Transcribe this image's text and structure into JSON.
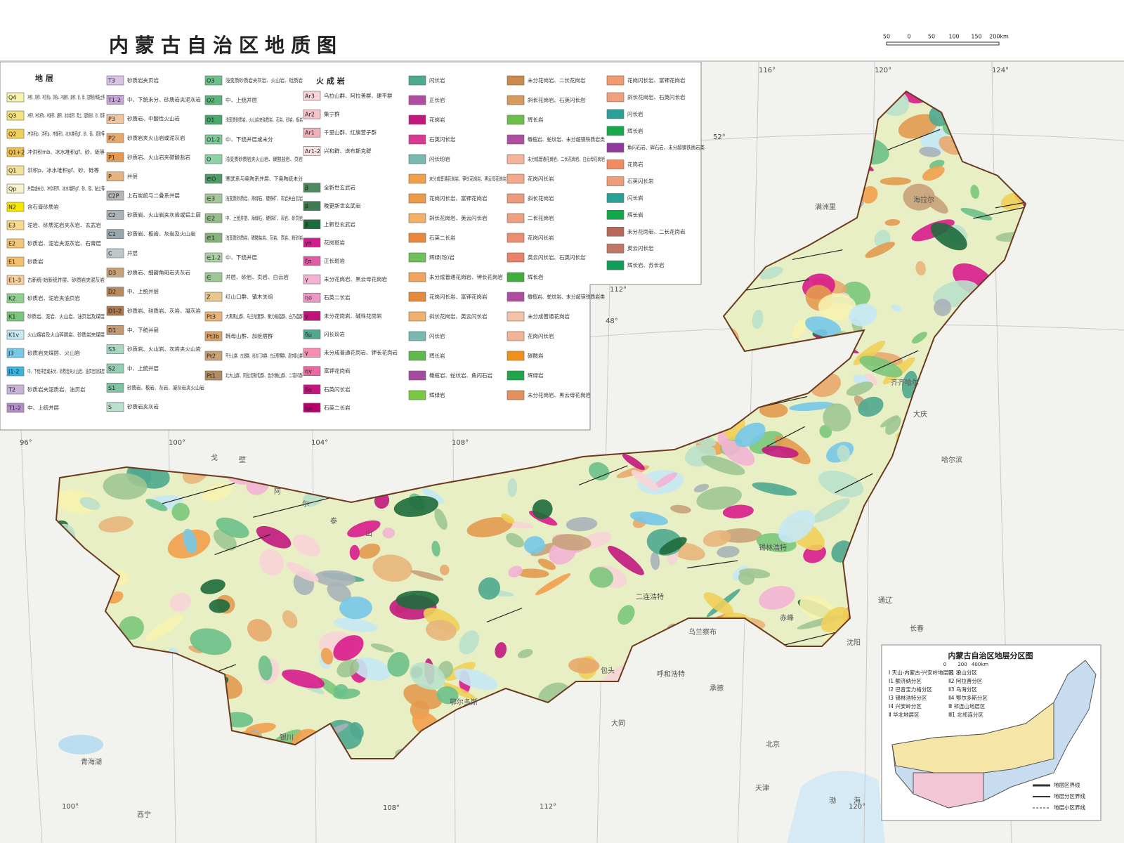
{
  "title": "内蒙古自治区地质图",
  "scale": [
    "50",
    "0",
    "50",
    "100",
    "150",
    "200km"
  ],
  "legend": {
    "strata_heading": "地 层",
    "igneous_heading": "火 成 岩",
    "columns": [
      [
        {
          "code": "Q4",
          "text": "冲积l、风积l、冲洪积p、洪积p、冲湖积l、湖积l、砂、砾、泥质粉砂和黏土等",
          "color": "#f6f2b0"
        },
        {
          "code": "Q3",
          "text": "冲积f、冲洪积fp、冲湖积l、湖积l、冰水堆积f、黄土、泥质粉砂、砂、砾等",
          "color": "#f5e27a"
        },
        {
          "code": "Q2",
          "text": "冲洪积p、洪积p、冲湖积l、冰水堆积gf、砂、砾、泥砂等",
          "color": "#f0cf59"
        },
        {
          "code": "Q1+2",
          "text": "冲洪积mb、冰水堆积gf、砂、砾等",
          "color": "#eec050"
        },
        {
          "code": "Q1",
          "text": "洪积p、冰水堆积gf、砂、砾等",
          "color": "#f3e09a"
        },
        {
          "code": "Qp",
          "text": "并层或未分、冲洪积fl、冰水堆积gf、砂、砾、黏土等",
          "color": "#f8f3cc"
        },
        {
          "code": "N2",
          "text": "含石膏砂质岩",
          "color": "#f7e600"
        },
        {
          "code": "E3",
          "text": "泥岩、砂质泥岩夹灰岩、玄武岩",
          "color": "#f9d98c"
        },
        {
          "code": "E2",
          "text": "砂质岩、泥岩夹泥灰岩、石膏层",
          "color": "#f5c878"
        },
        {
          "code": "E1",
          "text": "砂质岩",
          "color": "#f5c06b"
        },
        {
          "code": "E1-3",
          "text": "古新统-始新统并层、砂质岩夹泥灰岩",
          "color": "#f7d09c"
        },
        {
          "code": "K2",
          "text": "砂质岩、泥岩夹油页岩",
          "color": "#8fd18f"
        },
        {
          "code": "K1",
          "text": "砂质岩、泥岩、火山岩、油页岩及煤层",
          "color": "#7bc67b"
        },
        {
          "code": "K1v",
          "text": "火山熔岩及火山碎屑岩、砂质岩夹煤层",
          "color": "#c5e8f5"
        },
        {
          "code": "J3",
          "text": "砂质岩夹煤层、火山岩",
          "color": "#76c8e8"
        },
        {
          "code": "J1-2",
          "text": "中、下统并层或未分、砂质岩夹火山岩、油页岩及煤层",
          "color": "#3db3e0"
        },
        {
          "code": "T2",
          "text": "砂质岩夹泥质岩、油页岩",
          "color": "#c9b3d9"
        },
        {
          "code": "T1-2",
          "text": "中、上统并层",
          "color": "#b48fc7"
        }
      ],
      [
        {
          "code": "T3",
          "text": "砂质岩夹页岩",
          "color": "#d9c3e6"
        },
        {
          "code": "T1-2",
          "text": "中、下统未分、砂质岩夹泥灰岩",
          "color": "#c6a6d8"
        },
        {
          "code": "P3",
          "text": "砂质岩、中酸性火山岩",
          "color": "#f0c6a0"
        },
        {
          "code": "P2",
          "text": "砂质岩夹火山岩或泥灰岩",
          "color": "#e8a86c"
        },
        {
          "code": "P1",
          "text": "砂质岩、火山岩夹碳酸盐岩",
          "color": "#e39a50"
        },
        {
          "code": "P",
          "text": "并层",
          "color": "#e7b27e"
        },
        {
          "code": "C2P",
          "text": "上石炭统与二叠系并层",
          "color": "#b6b6b6"
        },
        {
          "code": "C2",
          "text": "砂质岩、火山岩夹灰岩或铝土层",
          "color": "#a9b3b9"
        },
        {
          "code": "C1",
          "text": "砂质岩、板岩、灰岩及火山岩",
          "color": "#9aa6ad"
        },
        {
          "code": "C",
          "text": "并层",
          "color": "#bfc6ca"
        },
        {
          "code": "D3",
          "text": "砂质岩、细碧角斑岩夹灰岩",
          "color": "#c9a27a"
        },
        {
          "code": "D2",
          "text": "中、上统并层",
          "color": "#b98a5f"
        },
        {
          "code": "D1-2",
          "text": "砂质岩、硅质岩、灰岩、凝灰岩",
          "color": "#a87950"
        },
        {
          "code": "D1",
          "text": "中、下统并层",
          "color": "#c19a74"
        },
        {
          "code": "S3",
          "text": "砂质岩、火山岩、灰岩夹火山岩",
          "color": "#a8d8c0"
        },
        {
          "code": "S2",
          "text": "中、上统并层",
          "color": "#94cfb1"
        },
        {
          "code": "S1",
          "text": "砂质岩、板岩、灰岩、凝灰岩夹火山岩",
          "color": "#7fc3a0"
        },
        {
          "code": "S",
          "text": "砂质岩夹灰岩",
          "color": "#b9e0cb"
        }
      ],
      [
        {
          "code": "O3",
          "text": "浅变质砂质岩夹灰岩、火山岩、硅质岩",
          "color": "#6cc08a"
        },
        {
          "code": "O2",
          "text": "中、上统并层",
          "color": "#5bb47c"
        },
        {
          "code": "O1",
          "text": "浅变质砂质岩、火山岩夹硅质岩、灰岩、砂岩、板岩",
          "color": "#4aa86d"
        },
        {
          "code": "O1-2",
          "text": "中、下统并层或未分",
          "color": "#7ccb98"
        },
        {
          "code": "O",
          "text": "浅变质砂质岩夹火山岩、碳酸盐岩、页岩",
          "color": "#8fd1a7"
        },
        {
          "code": "∈O",
          "text": "寒武系与奥陶系并层、下奥陶统未分",
          "color": "#4f9b6a"
        },
        {
          "code": "∈3",
          "text": "浅变质砂质岩、海绿石、硬铁矿、灰岩夹白云岩",
          "color": "#a3c79a"
        },
        {
          "code": "∈2",
          "text": "中、上统并层、海绿石、硬铁矿、灰岩、砂页岩",
          "color": "#95bd8b"
        },
        {
          "code": "∈1",
          "text": "浅变质砂质岩、磷酸盐岩、灰岩、页岩、粉砂岩",
          "color": "#86b37c"
        },
        {
          "code": "∈1-2",
          "text": "中、下统并层",
          "color": "#b0d1a8"
        },
        {
          "code": "∈",
          "text": "并层、砂岩、页岩、白云岩",
          "color": "#9ec594"
        },
        {
          "code": "Z",
          "text": "红山口群、镇木关组",
          "color": "#e9c58f"
        },
        {
          "code": "Pt3",
          "text": "大黑黑山群、乌兰哈夏群、聚力格庙群、白乃庙群",
          "color": "#e7b57a"
        },
        {
          "code": "Pt3b",
          "text": "韩母山群、加疙瘩群",
          "color": "#dca36a"
        },
        {
          "code": "Pt2",
          "text": "平头山群、白湖群、哈达门沟群、白云鄂博群、渣尔泰山群",
          "color": "#c8a178"
        },
        {
          "code": "Pt1",
          "text": "北大山群、阿拉坦敖包群、色尔腾山群、二道凹群",
          "color": "#b38b60"
        }
      ],
      [
        {
          "code": "Ar3",
          "text": "乌拉山群、阿拉善群、建平群",
          "color": "#f8d4d8"
        },
        {
          "code": "Ar2",
          "text": "集宁群",
          "color": "#f4c2c8"
        },
        {
          "code": "Ar1",
          "text": "千里山群、红旗营子群",
          "color": "#efb1b9"
        },
        {
          "code": "Ar1-2",
          "text": "兴和群、迭布斯克群",
          "color": "#f9e0e3"
        },
        {
          "code": "β",
          "text": "全新世玄武岩",
          "color": "#4e8a5e"
        },
        {
          "code": "β",
          "text": "晚更新世玄武岩",
          "color": "#3f7a50"
        },
        {
          "code": "β",
          "text": "上新世玄武岩",
          "color": "#1e6b3c"
        },
        {
          "code": "γπ",
          "text": "花岗斑岩",
          "color": "#d81b8c"
        },
        {
          "code": "ξπ",
          "text": "正长斑岩",
          "color": "#e05aa6"
        },
        {
          "code": "γ",
          "text": "未分花岗岩、黑云母花岗岩",
          "color": "#f3b2d4"
        },
        {
          "code": "ηο",
          "text": "石英二长岩",
          "color": "#ef97c4"
        },
        {
          "code": "γ",
          "text": "未分花岗岩、碱性花岗岩",
          "color": "#c0137a"
        },
        {
          "code": "δμ",
          "text": "闪长玢岩",
          "color": "#4fa98f"
        },
        {
          "code": "γ",
          "text": "未分成普通花岗岩、钾长花岗岩",
          "color": "#f48fb1"
        },
        {
          "code": "ηγ",
          "text": "富钾花岗岩",
          "color": "#e66aa0"
        },
        {
          "code": "δο",
          "text": "石英闪长岩",
          "color": "#c2187e"
        },
        {
          "code": "ηο",
          "text": "石英二长岩",
          "color": "#b5006e"
        }
      ],
      [
        {
          "text": "闪长岩",
          "color": "#4fa98f"
        },
        {
          "text": "正长岩",
          "color": "#b04da0"
        },
        {
          "text": "花岗岩",
          "color": "#c2187e"
        },
        {
          "text": "石英闪长岩",
          "color": "#d63a92"
        },
        {
          "text": "闪长玢岩",
          "color": "#79b8b0"
        },
        {
          "text": "未分成普通花岗岩、钾长花岗岩、黑云母花岗岩",
          "color": "#f1a04c"
        },
        {
          "text": "花岗闪长岩、富钾花岗岩",
          "color": "#ee9a46"
        },
        {
          "text": "斜长花岗岩、英云闪长岩",
          "color": "#f3b066"
        },
        {
          "text": "石英二长岩",
          "color": "#e9883a"
        },
        {
          "text": "辉绿(玢)岩",
          "color": "#6fbf5a"
        },
        {
          "text": "未分成普通花岗岩、钾长花岗岩",
          "color": "#f0a35a"
        },
        {
          "text": "花岗闪长岩、富钾花岗岩",
          "color": "#e68a3c"
        },
        {
          "text": "斜长花岗岩、英云闪长岩",
          "color": "#f0b070"
        },
        {
          "text": "闪长岩",
          "color": "#79b8b0"
        },
        {
          "text": "辉长岩",
          "color": "#5fb84c"
        },
        {
          "text": "橄榄岩、蛇纹岩、角闪石岩",
          "color": "#a44aa0"
        },
        {
          "text": "辉绿岩",
          "color": "#7ac943"
        }
      ],
      [
        {
          "text": "未分花岗岩、二长花岗岩",
          "color": "#c98a4a"
        },
        {
          "text": "斜长花岗岩、石英闪长岩",
          "color": "#d69a5a"
        },
        {
          "text": "辉长岩",
          "color": "#6cc04a"
        },
        {
          "text": "橄榄岩、蛇纹岩、未分超镁铁质岩类",
          "color": "#b04da0"
        },
        {
          "text": "未分成普通花岗岩、二长花岗岩、白云母花岗岩",
          "color": "#f4b59a"
        },
        {
          "text": "花岗闪长岩",
          "color": "#f2a88a"
        },
        {
          "text": "斜长花岗岩",
          "color": "#ee9a7c"
        },
        {
          "text": "二长花岗岩",
          "color": "#f0a080"
        },
        {
          "text": "花岗闪长岩",
          "color": "#eb8e70"
        },
        {
          "text": "英云闪长岩、石英闪长岩",
          "color": "#e98268"
        },
        {
          "text": "辉长岩",
          "color": "#3fae3a"
        },
        {
          "text": "橄榄岩、蛇纹岩、未分超镁铁质岩类",
          "color": "#b04da0"
        },
        {
          "text": "未分成普通花岗岩",
          "color": "#f6c3a8"
        },
        {
          "text": "花岗闪长岩",
          "color": "#f3b496"
        },
        {
          "text": "碳酸岩",
          "color": "#f0901a"
        },
        {
          "text": "辉绿岩",
          "color": "#1fa54a"
        },
        {
          "text": "未分花岗岩、黑云母花岗岩",
          "color": "#e1905e"
        }
      ],
      [
        {
          "text": "花岗闪长岩、富钾花岗岩",
          "color": "#f29a70"
        },
        {
          "text": "斜长花岗岩、石英闪长岩",
          "color": "#f0a07c"
        },
        {
          "text": "闪长岩",
          "color": "#2aa198"
        },
        {
          "text": "辉长岩",
          "color": "#17a84e"
        },
        {
          "text": "角闪石岩、辉石岩、未分超镁铁质岩类",
          "color": "#8e3a9c"
        },
        {
          "text": "花岗岩",
          "color": "#f08a60"
        },
        {
          "text": "石英闪长岩",
          "color": "#ef9c78"
        },
        {
          "text": "闪长岩",
          "color": "#2aa198"
        },
        {
          "text": "辉长岩",
          "color": "#10a84a"
        },
        {
          "text": "未分花岗岩、二长花岗岩",
          "color": "#b8685a"
        },
        {
          "text": "英云闪长岩",
          "color": "#c27666"
        },
        {
          "text": "辉长岩、苏长岩",
          "color": "#0f9d58"
        }
      ]
    ]
  },
  "graticule": [
    "96°",
    "100°",
    "104°",
    "108°",
    "112°",
    "116°",
    "120°",
    "124°",
    "48°",
    "52°",
    "100°",
    "108°",
    "112°",
    "120°"
  ],
  "places": [
    "戈",
    "壁",
    "阿",
    "尔",
    "泰",
    "山",
    "二连浩特",
    "呼和浩特",
    "包头",
    "北京",
    "天津",
    "沈阳",
    "长春",
    "齐齐哈尔",
    "大庆",
    "哈尔滨",
    "银川",
    "西宁",
    "青海湖",
    "渤",
    "海",
    "赤峰",
    "通辽",
    "海拉尔",
    "满洲里",
    "乌兰察布",
    "锡林浩特",
    "鄂尔多斯",
    "承德",
    "大同"
  ],
  "inset": {
    "title": "内蒙古自治区地层分区图",
    "scale": [
      "0",
      "200",
      "400km"
    ],
    "items": [
      "Ⅰ 天山-内蒙古-兴安岭地层区",
      "Ⅰ1 额济纳分区",
      "Ⅰ2 巴音宝力格分区",
      "Ⅰ3 锡林浩特分区",
      "Ⅰ4 兴安岭分区",
      "Ⅱ 华北地层区",
      "Ⅱ1 狼山分区",
      "Ⅱ2 阿拉善分区",
      "Ⅱ3 乌海分区",
      "Ⅱ4 鄂尔多斯分区",
      "Ⅲ 祁连山地层区",
      "Ⅲ1 北祁连分区"
    ],
    "key": [
      "地层区界线",
      "地层分区界线",
      "地层小区界线"
    ]
  }
}
